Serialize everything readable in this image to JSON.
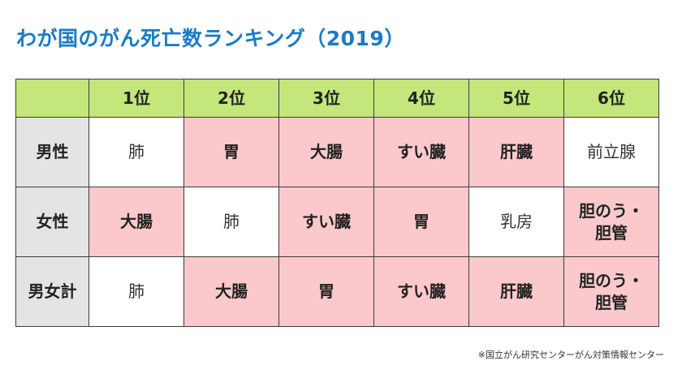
{
  "title": "わが国のがん死亡数ランキング（2019）",
  "table": {
    "headers": [
      "",
      "1位",
      "2位",
      "3位",
      "4位",
      "5位",
      "6位"
    ],
    "rows": [
      {
        "label": "男性",
        "cells": [
          {
            "text": "肺",
            "highlight": false
          },
          {
            "text": "胃",
            "highlight": true
          },
          {
            "text": "大腸",
            "highlight": true
          },
          {
            "text": "すい臓",
            "highlight": true
          },
          {
            "text": "肝臓",
            "highlight": true
          },
          {
            "text": "前立腺",
            "highlight": false
          }
        ]
      },
      {
        "label": "女性",
        "cells": [
          {
            "text": "大腸",
            "highlight": true
          },
          {
            "text": "肺",
            "highlight": false
          },
          {
            "text": "すい臓",
            "highlight": true
          },
          {
            "text": "胃",
            "highlight": true
          },
          {
            "text": "乳房",
            "highlight": false
          },
          {
            "text": "胆のう・\n胆管",
            "highlight": true
          }
        ]
      },
      {
        "label": "男女計",
        "cells": [
          {
            "text": "肺",
            "highlight": false
          },
          {
            "text": "大腸",
            "highlight": true
          },
          {
            "text": "胃",
            "highlight": true
          },
          {
            "text": "すい臓",
            "highlight": true
          },
          {
            "text": "肝臓",
            "highlight": true
          },
          {
            "text": "胆のう・\n胆管",
            "highlight": true
          }
        ]
      }
    ]
  },
  "source": "※国立がん研究センターがん対策情報センター",
  "colors": {
    "title": "#1a7bc6",
    "header_bg": "#c4e67a",
    "label_bg": "#e4e4e4",
    "highlight_bg": "#fbc9cb",
    "plain_bg": "#ffffff",
    "border": "#3c3c3c"
  }
}
